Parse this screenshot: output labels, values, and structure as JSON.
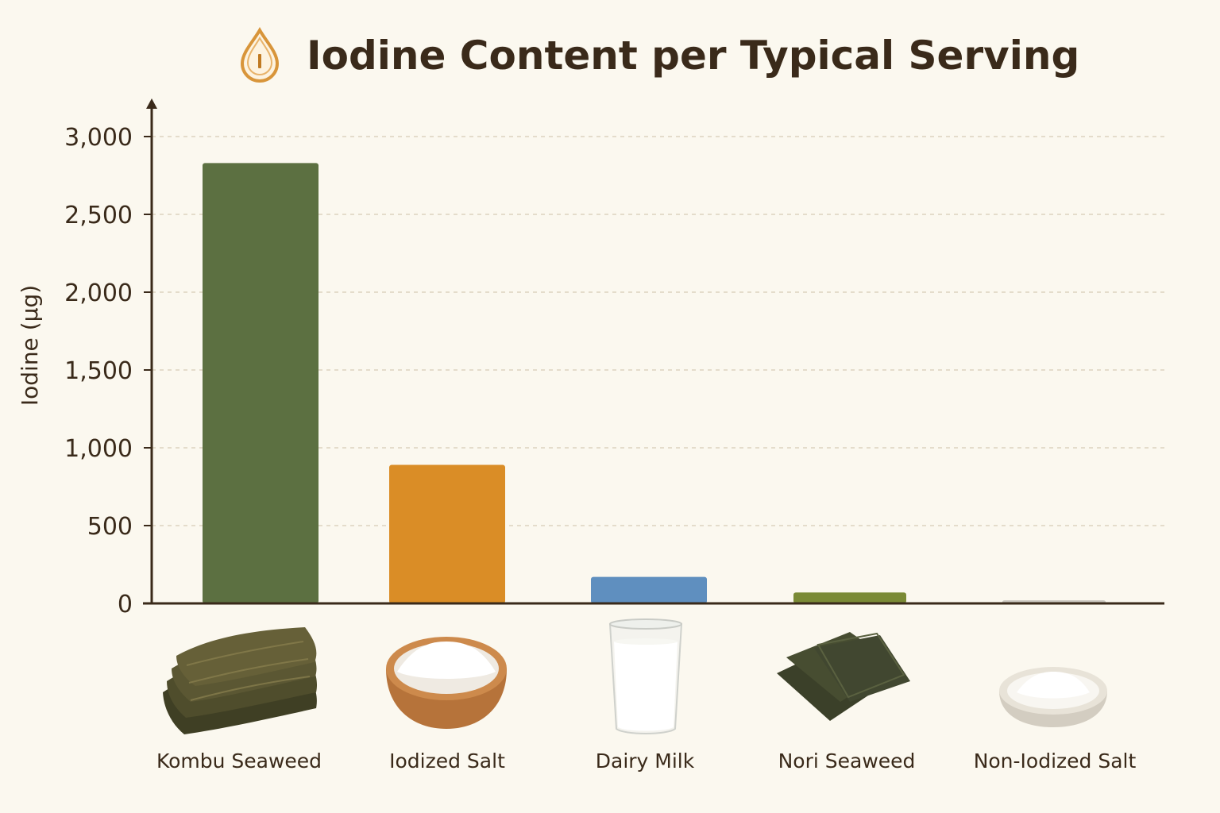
{
  "chart_data": {
    "type": "bar",
    "title": "Iodine Content per Typical Serving",
    "title_icon": "iodine-drop-icon",
    "ylabel": "Iodine (µg)",
    "xlabel": "",
    "ylim": [
      0,
      3000
    ],
    "yticks": [
      0,
      500,
      1000,
      1500,
      2000,
      2500,
      3000
    ],
    "ytick_labels": [
      "0",
      "500",
      "1,000",
      "1,500",
      "2,000",
      "2,500",
      "3,000"
    ],
    "grid": true,
    "categories": [
      "Kombu Seaweed",
      "Iodized Salt",
      "Dairy Milk",
      "Nori Seaweed",
      "Non-Iodized Salt"
    ],
    "values": [
      2830,
      890,
      170,
      70,
      20
    ],
    "colors": [
      "#5c7041",
      "#da8d26",
      "#5f8fbf",
      "#7a8a35",
      "#c8c4bc"
    ],
    "category_icons": [
      "kombu-seaweed-icon",
      "salt-bowl-icon",
      "milk-glass-icon",
      "nori-seaweed-icon",
      "salt-dish-icon"
    ]
  }
}
